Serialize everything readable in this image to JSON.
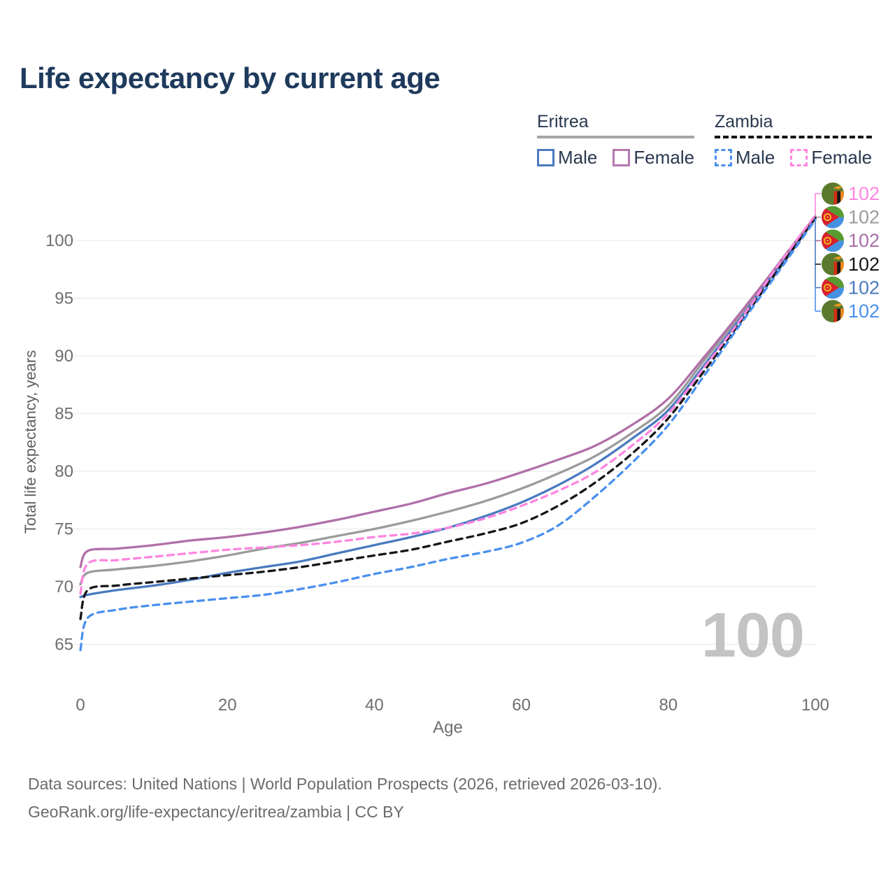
{
  "title": "Life expectancy by current age",
  "legend": {
    "groups": [
      {
        "country": "Eritrea",
        "line_style": "solid",
        "underline_color": "#a6a6a6",
        "items": [
          {
            "label": "Male",
            "color": "#4a7abf",
            "dashed": false
          },
          {
            "label": "Female",
            "color": "#b678b0",
            "dashed": false
          }
        ]
      },
      {
        "country": "Zambia",
        "line_style": "dashed",
        "underline_color": "#151515",
        "items": [
          {
            "label": "Male",
            "color": "#4a90ee",
            "dashed": true
          },
          {
            "label": "Female",
            "color": "#ff85e0",
            "dashed": true
          }
        ]
      }
    ]
  },
  "watermark": "100",
  "y_axis_title": "Total life expectancy, years",
  "x_axis_title": "Age",
  "footer": {
    "line1": "Data sources: United Nations | World Population Prospects (2026, retrieved 2026-03-10).",
    "line2": "GeoRank.org/life-expectancy/eritrea/zambia | CC BY"
  },
  "chart_data": {
    "type": "line",
    "title": "Life expectancy by current age",
    "xlabel": "Age",
    "ylabel": "Total life expectancy, years",
    "x_ticks": [
      0,
      20,
      40,
      60,
      80,
      100
    ],
    "y_ticks": [
      65,
      70,
      75,
      80,
      85,
      90,
      95,
      100
    ],
    "xlim": [
      0,
      100
    ],
    "ylim": [
      63,
      103.5
    ],
    "grid": "horizontal",
    "legend_position": "top-right",
    "current_age_indicator": "100",
    "x": [
      0,
      1,
      5,
      10,
      15,
      20,
      25,
      30,
      35,
      40,
      45,
      50,
      55,
      60,
      65,
      70,
      75,
      80,
      85,
      90,
      95,
      100
    ],
    "series": [
      {
        "name": "Eritrea Total",
        "country": "Eritrea",
        "sex": "Both",
        "line": "solid",
        "color": "#9b9b9b",
        "flag": "eritrea",
        "end_label": "102",
        "label_color": "#9b9b9b",
        "label_slot": 1,
        "values": [
          70.2,
          71.2,
          71.5,
          71.8,
          72.2,
          72.7,
          73.3,
          73.8,
          74.4,
          75.0,
          75.7,
          76.5,
          77.4,
          78.5,
          79.8,
          81.3,
          83.3,
          85.7,
          89.7,
          93.7,
          98.0,
          102.1
        ]
      },
      {
        "name": "Eritrea Male",
        "country": "Eritrea",
        "sex": "Male",
        "line": "solid",
        "color": "#4a7abf",
        "flag": "eritrea",
        "end_label": "102",
        "label_color": "#4a7abf",
        "label_slot": 4,
        "values": [
          69.1,
          69.3,
          69.7,
          70.1,
          70.6,
          71.2,
          71.7,
          72.2,
          72.9,
          73.6,
          74.3,
          75.1,
          76.1,
          77.3,
          78.8,
          80.6,
          82.8,
          85.3,
          89.3,
          93.4,
          97.7,
          101.9
        ]
      },
      {
        "name": "Eritrea Female",
        "country": "Eritrea",
        "sex": "Female",
        "line": "solid",
        "color": "#b06fa8",
        "flag": "eritrea",
        "end_label": "102",
        "label_color": "#a86fa8",
        "label_slot": 2,
        "values": [
          71.7,
          73.1,
          73.3,
          73.6,
          74.0,
          74.3,
          74.7,
          75.2,
          75.8,
          76.5,
          77.2,
          78.1,
          78.9,
          79.9,
          81.0,
          82.2,
          84.0,
          86.3,
          90.0,
          93.9,
          97.95,
          102.0
        ]
      },
      {
        "name": "Zambia Total",
        "country": "Zambia",
        "sex": "Both",
        "line": "dashed",
        "color": "#151515",
        "flag": "zambia",
        "end_label": "102",
        "label_color": "#151515",
        "label_slot": 3,
        "values": [
          67.2,
          69.7,
          70.1,
          70.4,
          70.7,
          71.0,
          71.3,
          71.7,
          72.2,
          72.7,
          73.2,
          73.9,
          74.6,
          75.5,
          77.0,
          79.0,
          81.5,
          84.6,
          88.8,
          93.1,
          97.5,
          101.95
        ]
      },
      {
        "name": "Zambia Male",
        "country": "Zambia",
        "sex": "Male",
        "line": "dashed",
        "color": "#4a90ee",
        "flag": "zambia",
        "end_label": "102",
        "label_color": "#4a90ee",
        "label_slot": 5,
        "values": [
          64.5,
          67.3,
          68.0,
          68.4,
          68.7,
          69.0,
          69.3,
          69.8,
          70.4,
          71.1,
          71.7,
          72.4,
          73.0,
          73.8,
          75.3,
          77.8,
          80.7,
          84.0,
          88.4,
          92.9,
          97.3,
          101.8
        ]
      },
      {
        "name": "Zambia Female",
        "country": "Zambia",
        "sex": "Female",
        "line": "dashed",
        "color": "#ff85e0",
        "flag": "zambia",
        "end_label": "102",
        "label_color": "#ff85e0",
        "label_slot": 0,
        "values": [
          69.4,
          72.0,
          72.3,
          72.6,
          72.9,
          73.2,
          73.4,
          73.6,
          73.9,
          74.3,
          74.6,
          75.1,
          75.9,
          77.0,
          78.3,
          79.9,
          82.2,
          85.0,
          89.1,
          93.3,
          97.9,
          102.2
        ]
      }
    ]
  }
}
